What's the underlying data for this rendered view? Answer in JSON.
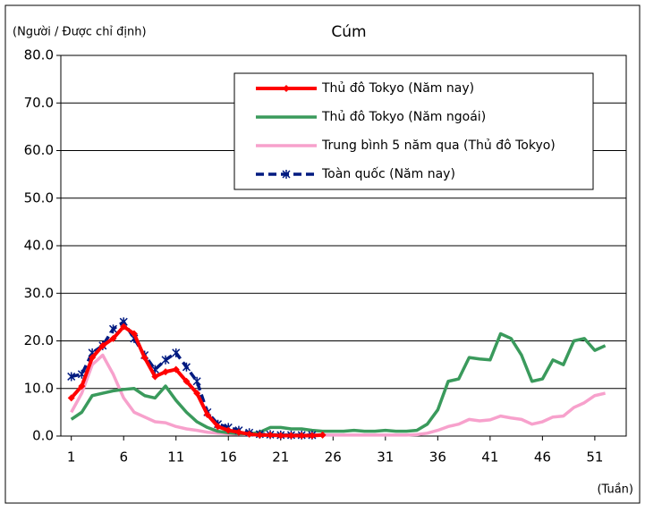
{
  "chart_data": {
    "type": "line",
    "title": "Cúm",
    "y_label": "(Người / Được chỉ định)",
    "x_label": "(Tuần)",
    "x": [
      1,
      2,
      3,
      4,
      5,
      6,
      7,
      8,
      9,
      10,
      11,
      12,
      13,
      14,
      15,
      16,
      17,
      18,
      19,
      20,
      21,
      22,
      23,
      24,
      25,
      26,
      27,
      28,
      29,
      30,
      31,
      32,
      33,
      34,
      35,
      36,
      37,
      38,
      39,
      40,
      41,
      42,
      43,
      44,
      45,
      46,
      47,
      48,
      49,
      50,
      51,
      52
    ],
    "xlim": [
      0,
      54
    ],
    "xticks": [
      1,
      6,
      11,
      16,
      21,
      26,
      31,
      36,
      41,
      46,
      51
    ],
    "ylim": [
      0,
      80
    ],
    "yticks": [
      {
        "value": 0,
        "label": "0.0"
      },
      {
        "value": 10,
        "label": "10.0"
      },
      {
        "value": 20,
        "label": "20.0"
      },
      {
        "value": 30,
        "label": "30.0"
      },
      {
        "value": 40,
        "label": "40.0"
      },
      {
        "value": 50,
        "label": "50.0"
      },
      {
        "value": 60,
        "label": "60.0"
      },
      {
        "value": 70,
        "label": "70.0"
      },
      {
        "value": 80,
        "label": "80.0"
      }
    ],
    "grid": true,
    "legend": "top-right",
    "series": [
      {
        "name": "Thủ đô Tokyo (Năm nay)",
        "color": "#ff0000",
        "marker": "diamond",
        "values": [
          8,
          10.5,
          16.5,
          19,
          20.5,
          23,
          21.5,
          16.5,
          12.5,
          13.5,
          14,
          11.5,
          9,
          4.5,
          2,
          1.2,
          0.8,
          0.4,
          0.2,
          0.2,
          0.1,
          0.1,
          0.1,
          0.1,
          0.2,
          null,
          null,
          null,
          null,
          null,
          null,
          null,
          null,
          null,
          null,
          null,
          null,
          null,
          null,
          null,
          null,
          null,
          null,
          null,
          null,
          null,
          null,
          null,
          null,
          null,
          null,
          null
        ]
      },
      {
        "name": "Thủ đô Tokyo (Năm ngoái)",
        "color": "#3a9a5c",
        "marker": "none",
        "values": [
          3.5,
          5,
          8.5,
          9,
          9.5,
          9.8,
          10,
          8.5,
          8,
          10.5,
          7.5,
          5,
          3,
          1.8,
          1,
          0.7,
          0.5,
          0.4,
          0.8,
          1.8,
          1.8,
          1.5,
          1.5,
          1.2,
          1,
          1,
          1,
          1.2,
          1,
          1,
          1.2,
          1,
          1,
          1.2,
          2.5,
          5.5,
          11.5,
          12,
          16.5,
          16.2,
          16,
          21.5,
          20.5,
          17,
          11.5,
          12,
          16,
          15,
          20,
          20.5,
          18,
          19
        ]
      },
      {
        "name": "Trung bình 5 năm qua (Thủ đô Tokyo)",
        "color": "#f7a1cc",
        "marker": "none",
        "values": [
          5,
          9,
          15,
          17,
          13,
          8,
          5,
          4,
          3,
          2.8,
          2,
          1.5,
          1.2,
          0.8,
          0.6,
          0.5,
          0.4,
          0.3,
          0.2,
          0.2,
          0.2,
          0.2,
          0.2,
          0.2,
          0.2,
          0.2,
          0.2,
          0.2,
          0.2,
          0.2,
          0.2,
          0.2,
          0.2,
          0.3,
          0.6,
          1.2,
          2,
          2.5,
          3.5,
          3.2,
          3.4,
          4.2,
          3.8,
          3.5,
          2.5,
          3,
          4,
          4.2,
          6,
          7,
          8.5,
          9
        ]
      },
      {
        "name": "Toàn quốc (Năm nay)",
        "color": "#001a80",
        "marker": "star",
        "dashed": true,
        "values": [
          12.5,
          13,
          17.5,
          19,
          22.5,
          24,
          20.5,
          17,
          14,
          16,
          17.5,
          14.5,
          11.5,
          5,
          2.5,
          1.8,
          1.2,
          0.7,
          0.4,
          0.3,
          0.2,
          0.2,
          0.2,
          0.2,
          null,
          null,
          null,
          null,
          null,
          null,
          null,
          null,
          null,
          null,
          null,
          null,
          null,
          null,
          null,
          null,
          null,
          null,
          null,
          null,
          null,
          null,
          null,
          null,
          null,
          null,
          null,
          null
        ]
      }
    ]
  }
}
